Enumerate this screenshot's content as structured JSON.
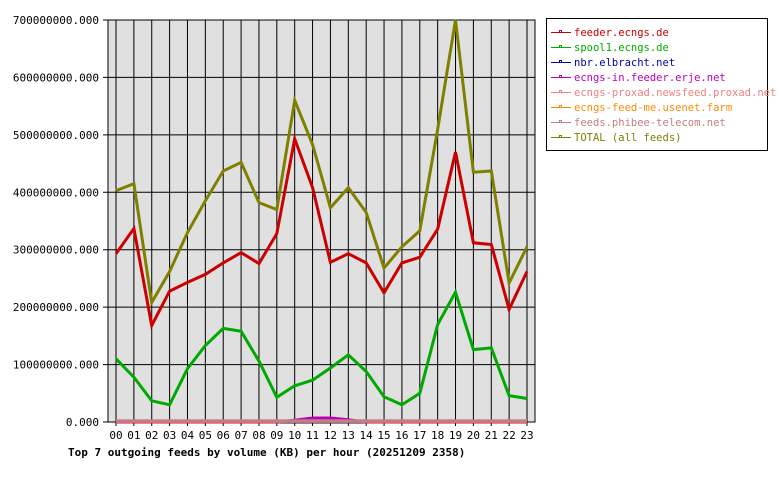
{
  "chart_data": {
    "type": "line",
    "title": "Top 7 outgoing feeds by volume (KB) per hour (20251209 2358)",
    "xlabel": "",
    "ylabel": "",
    "ylim": [
      0,
      700000000
    ],
    "yticks": [
      "0.000",
      "100000000.000",
      "200000000.000",
      "300000000.000",
      "400000000.000",
      "500000000.000",
      "600000000.000",
      "700000000.000"
    ],
    "grid": true,
    "legend_position": "right",
    "categories": [
      "00",
      "01",
      "02",
      "03",
      "04",
      "05",
      "06",
      "07",
      "08",
      "09",
      "10",
      "11",
      "12",
      "13",
      "14",
      "15",
      "16",
      "17",
      "18",
      "19",
      "20",
      "21",
      "22",
      "23"
    ],
    "series": [
      {
        "name": "feeder.ecngs.de",
        "color": "#cc0000",
        "values": [
          293000000,
          337000000,
          168000000,
          228000000,
          243000000,
          257000000,
          277000000,
          295000000,
          276000000,
          328000000,
          493000000,
          408000000,
          278000000,
          293000000,
          277000000,
          225000000,
          277000000,
          287000000,
          336000000,
          470000000,
          312000000,
          309000000,
          196000000,
          262000000
        ]
      },
      {
        "name": "spool1.ecngs.de",
        "color": "#00aa00",
        "values": [
          110000000,
          78000000,
          37000000,
          30000000,
          93000000,
          133000000,
          163000000,
          158000000,
          106000000,
          43000000,
          63000000,
          73000000,
          94000000,
          117000000,
          88000000,
          44000000,
          30000000,
          50000000,
          170000000,
          226000000,
          126000000,
          129000000,
          46000000,
          41000000
        ]
      },
      {
        "name": "nbr.elbracht.net",
        "color": "#0000aa",
        "values": [
          0,
          0,
          0,
          0,
          0,
          0,
          0,
          0,
          0,
          0,
          0,
          0,
          0,
          0,
          0,
          0,
          0,
          0,
          0,
          0,
          0,
          0,
          0,
          0
        ]
      },
      {
        "name": "ecngs-in.feeder.erje.net",
        "color": "#bb00bb",
        "values": [
          0,
          0,
          0,
          0,
          0,
          0,
          0,
          0,
          0,
          0,
          3000000,
          7000000,
          7000000,
          4000000,
          0,
          0,
          0,
          0,
          0,
          0,
          0,
          0,
          0,
          0
        ]
      },
      {
        "name": "ecngs-proxad.newsfeed.proxad.net",
        "color": "#f08080",
        "values": [
          2000000,
          2000000,
          2000000,
          2000000,
          2000000,
          2000000,
          2000000,
          2000000,
          2000000,
          2000000,
          2000000,
          2000000,
          2000000,
          2000000,
          2000000,
          2000000,
          2000000,
          2000000,
          2000000,
          2000000,
          2000000,
          2000000,
          2000000,
          2000000
        ]
      },
      {
        "name": "ecngs-feed-me.usenet.farm",
        "color": "#ff8800",
        "values": [
          1000000,
          1000000,
          1000000,
          1000000,
          1000000,
          1000000,
          1000000,
          1000000,
          1000000,
          1000000,
          1000000,
          1000000,
          1000000,
          1000000,
          1000000,
          1000000,
          1000000,
          1000000,
          1000000,
          1000000,
          1000000,
          1000000,
          1000000,
          1000000
        ]
      },
      {
        "name": "feeds.phibee-telecom.net",
        "color": "#c08080",
        "values": [
          2000000,
          2000000,
          2000000,
          2000000,
          2000000,
          2000000,
          2000000,
          2000000,
          2000000,
          2000000,
          2000000,
          2000000,
          2000000,
          2000000,
          2000000,
          2000000,
          2000000,
          2000000,
          2000000,
          2000000,
          2000000,
          2000000,
          2000000,
          2000000
        ]
      },
      {
        "name": "TOTAL (all feeds)",
        "color": "#808000",
        "values": [
          403000000,
          415000000,
          208000000,
          262000000,
          330000000,
          385000000,
          437000000,
          452000000,
          382000000,
          370000000,
          560000000,
          483000000,
          373000000,
          408000000,
          365000000,
          268000000,
          305000000,
          333000000,
          510000000,
          700000000,
          435000000,
          437000000,
          242000000,
          305000000
        ]
      }
    ]
  },
  "colors": {
    "plot_background": "#e0e0e0",
    "grid": "#000000"
  }
}
